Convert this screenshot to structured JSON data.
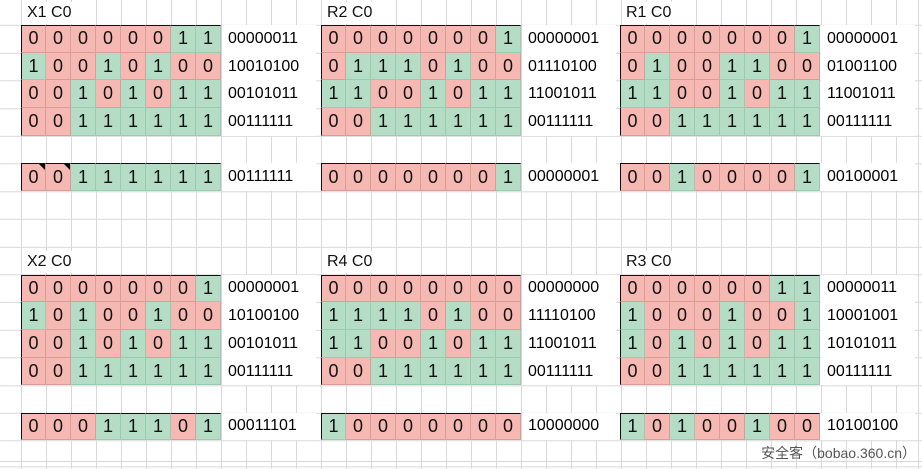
{
  "watermark": {
    "text": "安全客（bobao.360.cn）"
  },
  "colors": {
    "zero_fill": "#f6b8b2",
    "zero_border": "#d99c97",
    "one_fill": "#b5ddc6",
    "one_border": "#99ccae",
    "gridline": "#d8d8d8",
    "digit_text": "#111111",
    "label_text": "#000000",
    "watermark_text": "#555555",
    "comment_marker": "#000000"
  },
  "blocks": [
    {
      "title": "X1 C0",
      "grid_position": {
        "row": 0,
        "col": 0
      },
      "rows": [
        {
          "bits": "00000011",
          "label": "00000011"
        },
        {
          "bits": "10010100",
          "label": "10010100"
        },
        {
          "bits": "00101011",
          "label": "00101011"
        },
        {
          "bits": "00111111",
          "label": "00111111"
        }
      ],
      "result": {
        "bits": "00111111",
        "label": "00111111",
        "marker_cells": [
          0,
          1
        ]
      }
    },
    {
      "title": "R2 C0",
      "grid_position": {
        "row": 0,
        "col": 1
      },
      "rows": [
        {
          "bits": "00000001",
          "label": "00000001"
        },
        {
          "bits": "01110100",
          "label": "01110100"
        },
        {
          "bits": "11001011",
          "label": "11001011"
        },
        {
          "bits": "00111111",
          "label": "00111111"
        }
      ],
      "result": {
        "bits": "00000001",
        "label": "00000001",
        "marker_cells": []
      }
    },
    {
      "title": "R1 C0",
      "grid_position": {
        "row": 0,
        "col": 2
      },
      "rows": [
        {
          "bits": "00000001",
          "label": "00000001"
        },
        {
          "bits": "01001100",
          "label": "01001100"
        },
        {
          "bits": "11001011",
          "label": "11001011"
        },
        {
          "bits": "00111111",
          "label": "00111111"
        }
      ],
      "result": {
        "bits": "00100001",
        "label": "00100001",
        "marker_cells": []
      }
    },
    {
      "title": "X2 C0",
      "grid_position": {
        "row": 1,
        "col": 0
      },
      "rows": [
        {
          "bits": "00000001",
          "label": "00000001"
        },
        {
          "bits": "10100100",
          "label": "10100100"
        },
        {
          "bits": "00101011",
          "label": "00101011"
        },
        {
          "bits": "00111111",
          "label": "00111111"
        }
      ],
      "result": {
        "bits": "00011101",
        "label": "00011101",
        "marker_cells": []
      }
    },
    {
      "title": "R4 C0",
      "grid_position": {
        "row": 1,
        "col": 1
      },
      "rows": [
        {
          "bits": "00000000",
          "label": "00000000"
        },
        {
          "bits": "11110100",
          "label": "11110100"
        },
        {
          "bits": "11001011",
          "label": "11001011"
        },
        {
          "bits": "00111111",
          "label": "00111111"
        }
      ],
      "result": {
        "bits": "10000000",
        "label": "10000000",
        "marker_cells": []
      }
    },
    {
      "title": "R3 C0",
      "grid_position": {
        "row": 1,
        "col": 2
      },
      "rows": [
        {
          "bits": "00000011",
          "label": "00000011"
        },
        {
          "bits": "10001001",
          "label": "10001001"
        },
        {
          "bits": "10101011",
          "label": "10101011"
        },
        {
          "bits": "00111111",
          "label": "00111111"
        }
      ],
      "result": {
        "bits": "10100100",
        "label": "10100100",
        "marker_cells": []
      }
    }
  ]
}
